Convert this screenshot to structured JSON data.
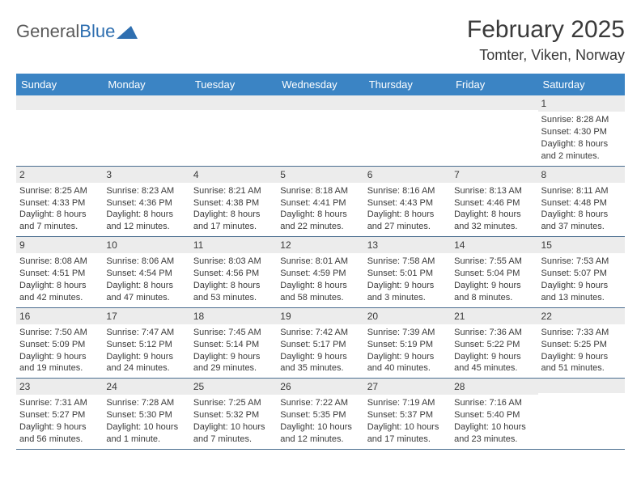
{
  "logo": {
    "text_gray": "General",
    "text_blue": "Blue"
  },
  "title": "February 2025",
  "location": "Tomter, Viken, Norway",
  "colors": {
    "header_bg": "#3b84c4",
    "header_text": "#ffffff",
    "daynum_bg": "#ececec",
    "cell_text": "#3a3a3a",
    "week_border": "#4a6d8f",
    "logo_gray": "#5a5a5a",
    "logo_blue": "#2f6fb0"
  },
  "day_headers": [
    "Sunday",
    "Monday",
    "Tuesday",
    "Wednesday",
    "Thursday",
    "Friday",
    "Saturday"
  ],
  "weeks": [
    [
      {
        "n": "",
        "sr": "",
        "ss": "",
        "dl": ""
      },
      {
        "n": "",
        "sr": "",
        "ss": "",
        "dl": ""
      },
      {
        "n": "",
        "sr": "",
        "ss": "",
        "dl": ""
      },
      {
        "n": "",
        "sr": "",
        "ss": "",
        "dl": ""
      },
      {
        "n": "",
        "sr": "",
        "ss": "",
        "dl": ""
      },
      {
        "n": "",
        "sr": "",
        "ss": "",
        "dl": ""
      },
      {
        "n": "1",
        "sr": "Sunrise: 8:28 AM",
        "ss": "Sunset: 4:30 PM",
        "dl": "Daylight: 8 hours and 2 minutes."
      }
    ],
    [
      {
        "n": "2",
        "sr": "Sunrise: 8:25 AM",
        "ss": "Sunset: 4:33 PM",
        "dl": "Daylight: 8 hours and 7 minutes."
      },
      {
        "n": "3",
        "sr": "Sunrise: 8:23 AM",
        "ss": "Sunset: 4:36 PM",
        "dl": "Daylight: 8 hours and 12 minutes."
      },
      {
        "n": "4",
        "sr": "Sunrise: 8:21 AM",
        "ss": "Sunset: 4:38 PM",
        "dl": "Daylight: 8 hours and 17 minutes."
      },
      {
        "n": "5",
        "sr": "Sunrise: 8:18 AM",
        "ss": "Sunset: 4:41 PM",
        "dl": "Daylight: 8 hours and 22 minutes."
      },
      {
        "n": "6",
        "sr": "Sunrise: 8:16 AM",
        "ss": "Sunset: 4:43 PM",
        "dl": "Daylight: 8 hours and 27 minutes."
      },
      {
        "n": "7",
        "sr": "Sunrise: 8:13 AM",
        "ss": "Sunset: 4:46 PM",
        "dl": "Daylight: 8 hours and 32 minutes."
      },
      {
        "n": "8",
        "sr": "Sunrise: 8:11 AM",
        "ss": "Sunset: 4:48 PM",
        "dl": "Daylight: 8 hours and 37 minutes."
      }
    ],
    [
      {
        "n": "9",
        "sr": "Sunrise: 8:08 AM",
        "ss": "Sunset: 4:51 PM",
        "dl": "Daylight: 8 hours and 42 minutes."
      },
      {
        "n": "10",
        "sr": "Sunrise: 8:06 AM",
        "ss": "Sunset: 4:54 PM",
        "dl": "Daylight: 8 hours and 47 minutes."
      },
      {
        "n": "11",
        "sr": "Sunrise: 8:03 AM",
        "ss": "Sunset: 4:56 PM",
        "dl": "Daylight: 8 hours and 53 minutes."
      },
      {
        "n": "12",
        "sr": "Sunrise: 8:01 AM",
        "ss": "Sunset: 4:59 PM",
        "dl": "Daylight: 8 hours and 58 minutes."
      },
      {
        "n": "13",
        "sr": "Sunrise: 7:58 AM",
        "ss": "Sunset: 5:01 PM",
        "dl": "Daylight: 9 hours and 3 minutes."
      },
      {
        "n": "14",
        "sr": "Sunrise: 7:55 AM",
        "ss": "Sunset: 5:04 PM",
        "dl": "Daylight: 9 hours and 8 minutes."
      },
      {
        "n": "15",
        "sr": "Sunrise: 7:53 AM",
        "ss": "Sunset: 5:07 PM",
        "dl": "Daylight: 9 hours and 13 minutes."
      }
    ],
    [
      {
        "n": "16",
        "sr": "Sunrise: 7:50 AM",
        "ss": "Sunset: 5:09 PM",
        "dl": "Daylight: 9 hours and 19 minutes."
      },
      {
        "n": "17",
        "sr": "Sunrise: 7:47 AM",
        "ss": "Sunset: 5:12 PM",
        "dl": "Daylight: 9 hours and 24 minutes."
      },
      {
        "n": "18",
        "sr": "Sunrise: 7:45 AM",
        "ss": "Sunset: 5:14 PM",
        "dl": "Daylight: 9 hours and 29 minutes."
      },
      {
        "n": "19",
        "sr": "Sunrise: 7:42 AM",
        "ss": "Sunset: 5:17 PM",
        "dl": "Daylight: 9 hours and 35 minutes."
      },
      {
        "n": "20",
        "sr": "Sunrise: 7:39 AM",
        "ss": "Sunset: 5:19 PM",
        "dl": "Daylight: 9 hours and 40 minutes."
      },
      {
        "n": "21",
        "sr": "Sunrise: 7:36 AM",
        "ss": "Sunset: 5:22 PM",
        "dl": "Daylight: 9 hours and 45 minutes."
      },
      {
        "n": "22",
        "sr": "Sunrise: 7:33 AM",
        "ss": "Sunset: 5:25 PM",
        "dl": "Daylight: 9 hours and 51 minutes."
      }
    ],
    [
      {
        "n": "23",
        "sr": "Sunrise: 7:31 AM",
        "ss": "Sunset: 5:27 PM",
        "dl": "Daylight: 9 hours and 56 minutes."
      },
      {
        "n": "24",
        "sr": "Sunrise: 7:28 AM",
        "ss": "Sunset: 5:30 PM",
        "dl": "Daylight: 10 hours and 1 minute."
      },
      {
        "n": "25",
        "sr": "Sunrise: 7:25 AM",
        "ss": "Sunset: 5:32 PM",
        "dl": "Daylight: 10 hours and 7 minutes."
      },
      {
        "n": "26",
        "sr": "Sunrise: 7:22 AM",
        "ss": "Sunset: 5:35 PM",
        "dl": "Daylight: 10 hours and 12 minutes."
      },
      {
        "n": "27",
        "sr": "Sunrise: 7:19 AM",
        "ss": "Sunset: 5:37 PM",
        "dl": "Daylight: 10 hours and 17 minutes."
      },
      {
        "n": "28",
        "sr": "Sunrise: 7:16 AM",
        "ss": "Sunset: 5:40 PM",
        "dl": "Daylight: 10 hours and 23 minutes."
      },
      {
        "n": "",
        "sr": "",
        "ss": "",
        "dl": ""
      }
    ]
  ]
}
